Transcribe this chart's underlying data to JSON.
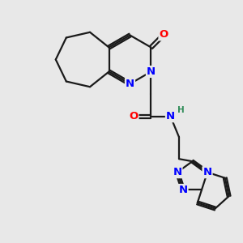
{
  "bg_color": "#e8e8e8",
  "bond_color": "#1a1a1a",
  "N_color": "#0000ff",
  "O_color": "#ff0000",
  "H_color": "#2e8b57",
  "bond_width": 1.6,
  "font_size_atom": 9.5,
  "font_size_H": 7.5,
  "xlim": [
    0,
    10
  ],
  "ylim": [
    0,
    10
  ]
}
